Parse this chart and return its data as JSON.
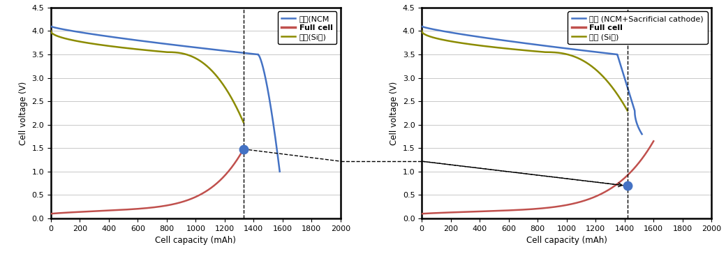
{
  "fig_width": 10.4,
  "fig_height": 3.64,
  "dpi": 100,
  "xlim": [
    0,
    2000
  ],
  "ylim": [
    0.0,
    4.5
  ],
  "yticks": [
    0.0,
    0.5,
    1.0,
    1.5,
    2.0,
    2.5,
    3.0,
    3.5,
    4.0,
    4.5
  ],
  "xticks": [
    0,
    200,
    400,
    600,
    800,
    1000,
    1200,
    1400,
    1600,
    1800,
    2000
  ],
  "xlabel": "Cell capacity (mAh)",
  "ylabel": "Cell voltage (V)",
  "color_cathode": "#4472C4",
  "color_fullcell": "#C0504D",
  "color_anode": "#8B8B00",
  "legend1_0": "양극(NCM",
  "legend1_1": "Full cell",
  "legend1_2": "음극(Si계)",
  "legend2_0": "양극 (NCM+Sacrificial cathode)",
  "legend2_1": "Full cell",
  "legend2_2": "음극 (Si계)",
  "dot1_x": 1330,
  "dot1_y": 1.48,
  "dot2_x": 1420,
  "dot2_y": 0.7,
  "dashed_x1": 1330,
  "dashed_x2": 1420
}
